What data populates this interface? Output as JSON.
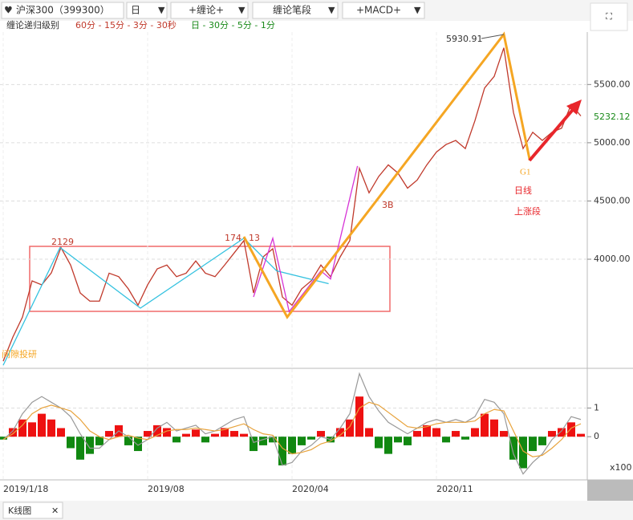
{
  "toolbar": {
    "symbol": "沪深300（399300）",
    "period": "日",
    "buttons": [
      "+缠论+",
      "缠论笔段",
      "+MACD+"
    ]
  },
  "level_info": {
    "label": "缠论递归级别",
    "levels_a": "60分 - 15分 - 3分 - 30秒",
    "levels_b": "日 - 30分 - 5分 - 1分"
  },
  "annotations": {
    "peak": "5930.91",
    "left_high": "2129",
    "mid_high_a": "174",
    "mid_high_b": "13",
    "buy_point": "3B",
    "g1": "G1",
    "daily": "日线",
    "up_segment": "上涨段",
    "watermark": "间隙投研",
    "last_price": "5232.12"
  },
  "chart_data": [
    {
      "type": "line",
      "categories": [
        "2019/1/18",
        null,
        null,
        null,
        null,
        null,
        null,
        null,
        null,
        null,
        null,
        null,
        null,
        null,
        null,
        "2019/08",
        null,
        null,
        null,
        null,
        null,
        null,
        null,
        null,
        null,
        null,
        null,
        null,
        null,
        null,
        "2020/04",
        null,
        null,
        null,
        null,
        null,
        null,
        null,
        null,
        null,
        null,
        null,
        null,
        null,
        null,
        "2020/11",
        null,
        null,
        null,
        null,
        null,
        null,
        null,
        null,
        null,
        null,
        null,
        null,
        null,
        null,
        null
      ],
      "series": [
        {
          "color": "#c0392b",
          "values": [
            3124,
            3331,
            3503,
            3814,
            3780,
            3883,
            4100,
            3950,
            3710,
            3640,
            3640,
            3880,
            3850,
            3745,
            3605,
            3780,
            3917,
            3950,
            3850,
            3880,
            3985,
            3880,
            3850,
            3950,
            4055,
            4160,
            3710,
            4020,
            4090,
            3675,
            3605,
            3745,
            3815,
            3950,
            3850,
            4020,
            4160,
            4780,
            4570,
            4710,
            4810,
            4740,
            4610,
            4680,
            4810,
            4920,
            4985,
            5020,
            4950,
            5190,
            5470,
            5570,
            5815,
            5260,
            4950,
            5090,
            5020,
            5090,
            5125,
            5330,
            5230
          ]
        },
        {
          "color": "#35c2e0",
          "x": [
            0,
            5.9,
            14.25,
            25,
            28.4,
            33.8
          ],
          "values": [
            3090,
            4100,
            3580,
            4180,
            3900,
            3790
          ]
        },
        {
          "color": "#d633d6",
          "x": [
            26,
            28,
            29.7,
            33,
            34,
            36.8
          ],
          "values": [
            3676,
            4180,
            3550,
            3900,
            3830,
            4800
          ]
        },
        {
          "color": "#f5a623",
          "x": [
            25,
            29.5,
            52,
            54.7
          ],
          "values": [
            4193,
            3503,
            5930.91,
            4848
          ]
        }
      ],
      "ylim": [
        3070,
        5950
      ],
      "yticks": [
        {
          "value": 4000,
          "label": "4000.00"
        },
        {
          "value": 4500,
          "label": "4500.00"
        },
        {
          "value": 5000,
          "label": "5000.00"
        },
        {
          "value": 5500,
          "label": "5500.00"
        }
      ],
      "grid": true
    },
    {
      "type": "macd",
      "unit_label": "x100",
      "up_color": "#ee1111",
      "down_color": "#118811",
      "series": [
        {
          "values": [
            -0.1,
            0.3,
            0.6,
            0.5,
            0.8,
            0.6,
            0.3,
            -0.4,
            -0.8,
            -0.6,
            -0.3,
            0.2,
            0.4,
            -0.3,
            -0.5,
            0.2,
            0.4,
            0.3,
            -0.2,
            0.1,
            0.25,
            -0.2,
            0.1,
            0.3,
            0.2,
            0.1,
            -0.5,
            -0.3,
            -0.2,
            -1.0,
            -0.6,
            -0.3,
            -0.1,
            0.2,
            -0.2,
            0.3,
            0.6,
            1.4,
            0.3,
            -0.4,
            -0.6,
            -0.2,
            -0.3,
            0.2,
            0.4,
            0.3,
            -0.2,
            0.2,
            -0.1,
            0.3,
            0.8,
            0.6,
            0.2,
            -0.8,
            -1.1,
            -0.5,
            -0.3,
            0.2,
            0.3,
            0.5,
            0.1
          ]
        },
        {
          "color": "#999999",
          "values": [
            -0.1,
            0.2,
            0.8,
            1.2,
            1.4,
            1.2,
            1.0,
            0.7,
            0.1,
            -0.4,
            -0.4,
            -0.1,
            0.2,
            0,
            -0.3,
            -0.1,
            0.3,
            0.5,
            0.2,
            0.3,
            0.4,
            0.1,
            0.2,
            0.4,
            0.6,
            0.7,
            -0.2,
            -0.1,
            0,
            -1.0,
            -0.9,
            -0.5,
            -0.3,
            0,
            -0.1,
            0.3,
            0.8,
            2.2,
            1.4,
            0.9,
            0.5,
            0.3,
            0.1,
            0.3,
            0.5,
            0.6,
            0.5,
            0.6,
            0.5,
            0.7,
            1.3,
            1.2,
            0.8,
            -0.6,
            -1.3,
            -0.9,
            -0.6,
            -0.1,
            0.2,
            0.7,
            0.6
          ]
        },
        {
          "color": "#e8a33c",
          "values": [
            -0.1,
            0.1,
            0.4,
            0.8,
            1.0,
            1.1,
            1.0,
            0.9,
            0.6,
            0.2,
            0,
            -0.1,
            0,
            0.05,
            -0.05,
            -0.1,
            0.05,
            0.2,
            0.25,
            0.25,
            0.3,
            0.25,
            0.2,
            0.25,
            0.35,
            0.45,
            0.25,
            0.1,
            0.05,
            -0.4,
            -0.6,
            -0.55,
            -0.45,
            -0.25,
            -0.15,
            0.05,
            0.35,
            1.0,
            1.2,
            1.1,
            0.85,
            0.6,
            0.35,
            0.3,
            0.35,
            0.45,
            0.5,
            0.5,
            0.5,
            0.55,
            0.8,
            0.95,
            0.9,
            0.2,
            -0.5,
            -0.7,
            -0.65,
            -0.4,
            -0.1,
            0.3,
            0.45
          ]
        }
      ],
      "ylim": [
        -1.45,
        2.3
      ],
      "yticks": [
        0,
        1
      ],
      "grid": true
    }
  ],
  "status_tab": "K线图"
}
